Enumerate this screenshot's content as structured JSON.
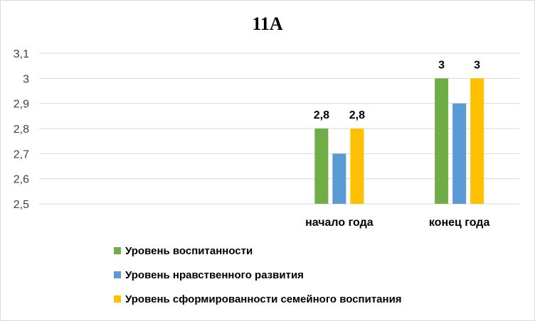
{
  "chart_data": {
    "type": "bar",
    "title": "11А",
    "categories": [
      "",
      "",
      "начало года",
      "конец года"
    ],
    "series": [
      {
        "name": "Уровень воспитанности",
        "values": [
          null,
          null,
          2.8,
          3.0
        ],
        "color": "#70AD47"
      },
      {
        "name": "Уровень нравственного развития",
        "values": [
          null,
          null,
          2.7,
          2.9
        ],
        "color": "#5B9BD5"
      },
      {
        "name": "Уровень сформированности семейного воспитания",
        "values": [
          null,
          null,
          2.8,
          3.0
        ],
        "color": "#FFC000"
      }
    ],
    "data_labels": {
      "series_indices": [
        0,
        2
      ],
      "text": [
        [
          null,
          null,
          "2,8",
          "3"
        ],
        [
          null,
          null,
          "2,8",
          "3"
        ]
      ]
    },
    "ylim": [
      2.5,
      3.1
    ],
    "y_ticks": [
      "2,5",
      "2,6",
      "2,7",
      "2,8",
      "2,9",
      "3",
      "3,1"
    ],
    "y_tick_values": [
      2.5,
      2.6,
      2.7,
      2.8,
      2.9,
      3.0,
      3.1
    ],
    "grid": true,
    "legend_position": "bottom",
    "gridline_color": "#d9d9d9"
  }
}
